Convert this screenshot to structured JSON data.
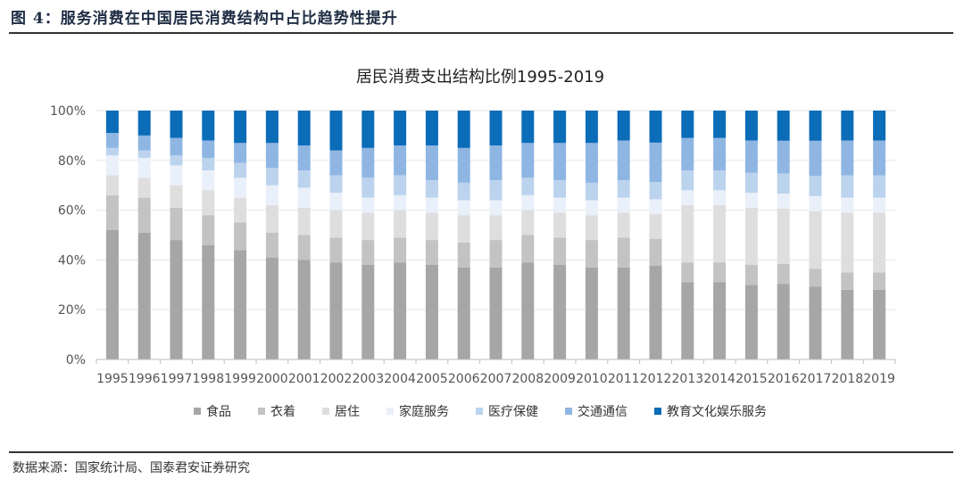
{
  "figure": {
    "title": "图 4：服务消费在中国居民消费结构中占比趋势性提升",
    "source": "数据来源：国家统计局、国泰君安证券研究"
  },
  "chart_data": {
    "type": "bar",
    "stacked": true,
    "title": "居民消费支出结构比例1995-2019",
    "xlabel": "",
    "ylabel": "",
    "ylim": [
      0,
      100
    ],
    "y_ticks": [
      "0%",
      "20%",
      "40%",
      "60%",
      "80%",
      "100%"
    ],
    "legend_position": "bottom",
    "categories": [
      "1995",
      "1996",
      "1997",
      "1998",
      "1999",
      "2000",
      "2001",
      "2002",
      "2003",
      "2004",
      "2005",
      "2006",
      "2007",
      "2008",
      "2009",
      "2010",
      "2011",
      "2012",
      "2013",
      "2014",
      "2015",
      "2016",
      "2017",
      "2018",
      "2019"
    ],
    "series": [
      {
        "name": "食品",
        "color": "#a6a6a6",
        "values": [
          52,
          51,
          48,
          46,
          44,
          41,
          40,
          39,
          38,
          39,
          38,
          37,
          37,
          39,
          38,
          37,
          37,
          38,
          31,
          31,
          30,
          30,
          29,
          28,
          28
        ]
      },
      {
        "name": "衣着",
        "color": "#c3c3c3",
        "values": [
          14,
          14,
          13,
          12,
          11,
          10,
          10,
          10,
          10,
          10,
          10,
          10,
          11,
          11,
          11,
          11,
          12,
          11,
          8,
          8,
          8,
          8,
          7,
          7,
          7
        ]
      },
      {
        "name": "居住",
        "color": "#dedede",
        "values": [
          8,
          8,
          9,
          10,
          10,
          11,
          11,
          11,
          11,
          11,
          11,
          11,
          10,
          10,
          10,
          10,
          10,
          10,
          23,
          23,
          23,
          22,
          23,
          24,
          24
        ]
      },
      {
        "name": "家庭服务",
        "color": "#e9f0f9",
        "values": [
          8,
          8,
          8,
          8,
          8,
          8,
          8,
          7,
          6,
          6,
          6,
          6,
          6,
          6,
          6,
          6,
          6,
          6,
          6,
          6,
          6,
          6,
          6,
          6,
          6
        ]
      },
      {
        "name": "医疗保健",
        "color": "#bcd3ee",
        "values": [
          3,
          3,
          4,
          5,
          6,
          7,
          7,
          7,
          8,
          8,
          7,
          7,
          8,
          7,
          7,
          7,
          7,
          7,
          8,
          8,
          8,
          8,
          8,
          9,
          9
        ]
      },
      {
        "name": "交通通信",
        "color": "#8fb6e3",
        "values": [
          6,
          6,
          7,
          7,
          8,
          10,
          10,
          10,
          12,
          12,
          14,
          14,
          14,
          14,
          15,
          16,
          16,
          16,
          13,
          13,
          13,
          13,
          14,
          14,
          14
        ]
      },
      {
        "name": "教育文化娱乐服务",
        "color": "#0b6cb8",
        "values": [
          9,
          10,
          11,
          12,
          13,
          13,
          14,
          16,
          15,
          14,
          14,
          15,
          14,
          13,
          13,
          13,
          12,
          13,
          11,
          11,
          12,
          12,
          12,
          12,
          12
        ]
      }
    ]
  }
}
